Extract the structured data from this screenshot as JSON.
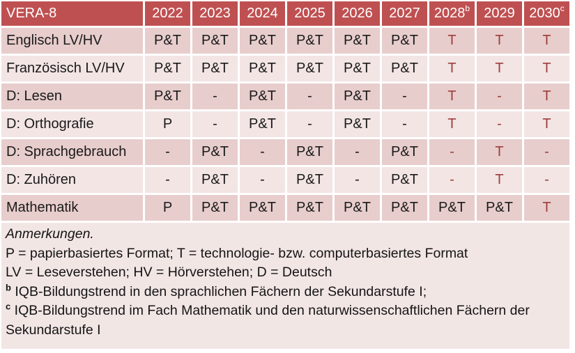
{
  "table": {
    "header": {
      "title": "VERA-8",
      "years": [
        {
          "label": "2022",
          "sup": ""
        },
        {
          "label": "2023",
          "sup": ""
        },
        {
          "label": "2024",
          "sup": ""
        },
        {
          "label": "2025",
          "sup": ""
        },
        {
          "label": "2026",
          "sup": ""
        },
        {
          "label": "2027",
          "sup": ""
        },
        {
          "label": "2028",
          "sup": "b"
        },
        {
          "label": "2029",
          "sup": ""
        },
        {
          "label": "2030",
          "sup": "c"
        }
      ]
    },
    "rows": [
      {
        "label": "Englisch LV/HV",
        "cells": [
          {
            "text": "P&T",
            "accent": false
          },
          {
            "text": "P&T",
            "accent": false
          },
          {
            "text": "P&T",
            "accent": false
          },
          {
            "text": "P&T",
            "accent": false
          },
          {
            "text": "P&T",
            "accent": false
          },
          {
            "text": "P&T",
            "accent": false
          },
          {
            "text": "T",
            "accent": true
          },
          {
            "text": "T",
            "accent": true
          },
          {
            "text": "T",
            "accent": true
          }
        ]
      },
      {
        "label": "Französisch LV/HV",
        "cells": [
          {
            "text": "P&T",
            "accent": false
          },
          {
            "text": "P&T",
            "accent": false
          },
          {
            "text": "P&T",
            "accent": false
          },
          {
            "text": "P&T",
            "accent": false
          },
          {
            "text": "P&T",
            "accent": false
          },
          {
            "text": "P&T",
            "accent": false
          },
          {
            "text": "T",
            "accent": true
          },
          {
            "text": "T",
            "accent": true
          },
          {
            "text": "T",
            "accent": true
          }
        ]
      },
      {
        "label": "D: Lesen",
        "cells": [
          {
            "text": "P&T",
            "accent": false
          },
          {
            "text": "-",
            "accent": false
          },
          {
            "text": "P&T",
            "accent": false
          },
          {
            "text": "-",
            "accent": false
          },
          {
            "text": "P&T",
            "accent": false
          },
          {
            "text": "-",
            "accent": false
          },
          {
            "text": "T",
            "accent": true
          },
          {
            "text": "-",
            "accent": true
          },
          {
            "text": "T",
            "accent": true
          }
        ]
      },
      {
        "label": "D: Orthografie",
        "cells": [
          {
            "text": "P",
            "accent": false
          },
          {
            "text": "-",
            "accent": false
          },
          {
            "text": "P&T",
            "accent": false
          },
          {
            "text": "-",
            "accent": false
          },
          {
            "text": "P&T",
            "accent": false
          },
          {
            "text": "-",
            "accent": false
          },
          {
            "text": "T",
            "accent": true
          },
          {
            "text": "-",
            "accent": true
          },
          {
            "text": "T",
            "accent": true
          }
        ]
      },
      {
        "label": "D: Sprachgebrauch",
        "cells": [
          {
            "text": "-",
            "accent": false
          },
          {
            "text": "P&T",
            "accent": false
          },
          {
            "text": "-",
            "accent": false
          },
          {
            "text": "P&T",
            "accent": false
          },
          {
            "text": "-",
            "accent": false
          },
          {
            "text": "P&T",
            "accent": false
          },
          {
            "text": "-",
            "accent": true
          },
          {
            "text": "T",
            "accent": true
          },
          {
            "text": "-",
            "accent": true
          }
        ]
      },
      {
        "label": "D: Zuhören",
        "cells": [
          {
            "text": "-",
            "accent": false
          },
          {
            "text": "P&T",
            "accent": false
          },
          {
            "text": "-",
            "accent": false
          },
          {
            "text": "P&T",
            "accent": false
          },
          {
            "text": "-",
            "accent": false
          },
          {
            "text": "P&T",
            "accent": false
          },
          {
            "text": "-",
            "accent": true
          },
          {
            "text": "T",
            "accent": true
          },
          {
            "text": "-",
            "accent": true
          }
        ]
      },
      {
        "label": "Mathematik",
        "cells": [
          {
            "text": "P",
            "accent": false
          },
          {
            "text": "P&T",
            "accent": false
          },
          {
            "text": "P&T",
            "accent": false
          },
          {
            "text": "P&T",
            "accent": false
          },
          {
            "text": "P&T",
            "accent": false
          },
          {
            "text": "P&T",
            "accent": false
          },
          {
            "text": "P&T",
            "accent": false
          },
          {
            "text": "P&T",
            "accent": false
          },
          {
            "text": "T",
            "accent": true
          }
        ]
      }
    ]
  },
  "notes": {
    "heading": "Anmerkungen.",
    "lines": [
      "P = papierbasiertes Format; T = technologie- bzw. computerbasiertes Format",
      "LV = Leseverstehen; HV = Hörverstehen; D = Deutsch"
    ],
    "footnotes": [
      {
        "sup": "b",
        "text": "IQB-Bildungstrend in den sprachlichen Fächern der Sekundarstufe I;"
      },
      {
        "sup": "c",
        "text": "IQB-Bildungstrend im Fach Mathematik und den naturwissenschaftlichen Fächern der Sekundarstufe I"
      }
    ]
  },
  "colors": {
    "header_bg": "#bf5051",
    "header_text": "#ffffff",
    "band_dark": "#e7cdcc",
    "band_light": "#f2e5e4",
    "notes_bg": "#f2e6e5",
    "body_text": "#1a1a1a",
    "accent_text": "#9e3d3b"
  }
}
